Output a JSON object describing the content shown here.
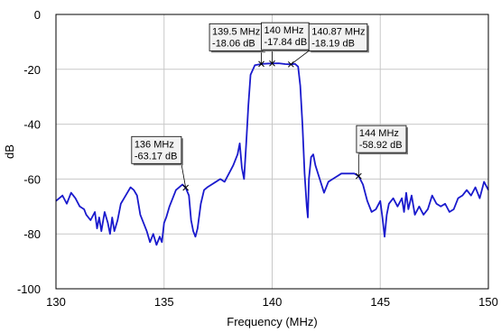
{
  "chart_data": {
    "type": "line",
    "title": "",
    "xlabel": "Frequency (MHz)",
    "ylabel": "dB",
    "xlim": [
      130,
      150
    ],
    "ylim": [
      -100,
      0
    ],
    "xticks": [
      130,
      135,
      140,
      145,
      150
    ],
    "yticks": [
      0,
      -20,
      -40,
      -60,
      -80,
      -100
    ],
    "grid": true,
    "colors": {
      "trace": "#1a1acd",
      "grid": "#c8c8c8",
      "axes": "#000000",
      "annotation_box": "#f2f2f2"
    },
    "series": [
      {
        "x": [
          130.0,
          130.3,
          130.5,
          130.7,
          130.9,
          131.1,
          131.3,
          131.4,
          131.6,
          131.8,
          131.9,
          132.0,
          132.1,
          132.25,
          132.4,
          132.5,
          132.6,
          132.7,
          132.85,
          133.0,
          133.15,
          133.3,
          133.45,
          133.6,
          133.75,
          133.9,
          134.05,
          134.2,
          134.35,
          134.5,
          134.65,
          134.8,
          134.9,
          135.0,
          135.1,
          135.25,
          135.4,
          135.55,
          135.7,
          135.85,
          136.0,
          136.15,
          136.25,
          136.35,
          136.45,
          136.55,
          136.7,
          136.85,
          137.0,
          137.2,
          137.4,
          137.6,
          137.8,
          138.0,
          138.2,
          138.4,
          138.5,
          138.6,
          138.7,
          138.8,
          138.9,
          139.0,
          139.2,
          139.5,
          139.8,
          140.0,
          140.3,
          140.6,
          140.87,
          141.05,
          141.2,
          141.3,
          141.4,
          141.5,
          141.6,
          141.65,
          141.7,
          141.8,
          141.9,
          142.0,
          142.2,
          142.4,
          142.6,
          142.8,
          143.0,
          143.2,
          143.4,
          143.6,
          143.8,
          144.0,
          144.2,
          144.4,
          144.6,
          144.8,
          145.0,
          145.1,
          145.2,
          145.3,
          145.4,
          145.6,
          145.8,
          146.0,
          146.1,
          146.2,
          146.3,
          146.45,
          146.6,
          146.8,
          147.0,
          147.2,
          147.4,
          147.6,
          147.8,
          148.0,
          148.2,
          148.4,
          148.6,
          148.8,
          149.0,
          149.2,
          149.4,
          149.6,
          149.8,
          150.0
        ],
        "y": [
          -68,
          -66,
          -69,
          -65,
          -67,
          -70,
          -71,
          -73,
          -75,
          -72,
          -78,
          -74,
          -79,
          -72,
          -76,
          -80,
          -74,
          -79,
          -75,
          -69,
          -67,
          -65,
          -63,
          -64,
          -66,
          -73,
          -76,
          -79,
          -83,
          -80,
          -84,
          -81,
          -83,
          -76,
          -74,
          -70,
          -67,
          -64,
          -63,
          -62,
          -63.17,
          -66,
          -75,
          -79,
          -81,
          -78,
          -69,
          -64,
          -63,
          -62,
          -61,
          -60,
          -61,
          -58,
          -55,
          -51,
          -47,
          -56,
          -60,
          -47,
          -33,
          -22,
          -18.5,
          -18.06,
          -17.9,
          -17.84,
          -17.8,
          -18.1,
          -18.19,
          -18,
          -19,
          -26,
          -40,
          -58,
          -70,
          -74,
          -60,
          -52,
          -51,
          -55,
          -60,
          -65,
          -61,
          -60,
          -59,
          -58,
          -58,
          -58,
          -58,
          -58.92,
          -62,
          -68,
          -72,
          -71,
          -68,
          -74,
          -81,
          -73,
          -69,
          -67,
          -70,
          -67,
          -72,
          -65,
          -71,
          -66,
          -73,
          -70,
          -73,
          -71,
          -66,
          -69,
          -70,
          -69,
          -72,
          -71,
          -67,
          -66,
          -64,
          -66,
          -63,
          -67,
          -61,
          -64
        ]
      }
    ],
    "annotations": [
      {
        "x": 136,
        "y": -63.17,
        "line1": "136 MHz",
        "line2": "-63.17 dB",
        "box_x": 133.5,
        "box_y": -44.5,
        "width_mhz": 2.3
      },
      {
        "x": 139.5,
        "y": -18.06,
        "line1": "139.5 MHz",
        "line2": "-18.06 dB",
        "box_x": 137.1,
        "box_y": -3.4,
        "width_mhz": 2.5
      },
      {
        "x": 140,
        "y": -17.84,
        "line1": "140 MHz",
        "line2": "-17.84 dB",
        "box_x": 139.5,
        "box_y": -3.0,
        "width_mhz": 2.2
      },
      {
        "x": 140.87,
        "y": -18.19,
        "line1": "140.87 MHz",
        "line2": "-18.19 dB",
        "box_x": 141.7,
        "box_y": -3.4,
        "width_mhz": 2.7
      },
      {
        "x": 144,
        "y": -58.92,
        "line1": "144 MHz",
        "line2": "-58.92 dB",
        "box_x": 143.9,
        "box_y": -40.5,
        "width_mhz": 2.3
      }
    ]
  }
}
